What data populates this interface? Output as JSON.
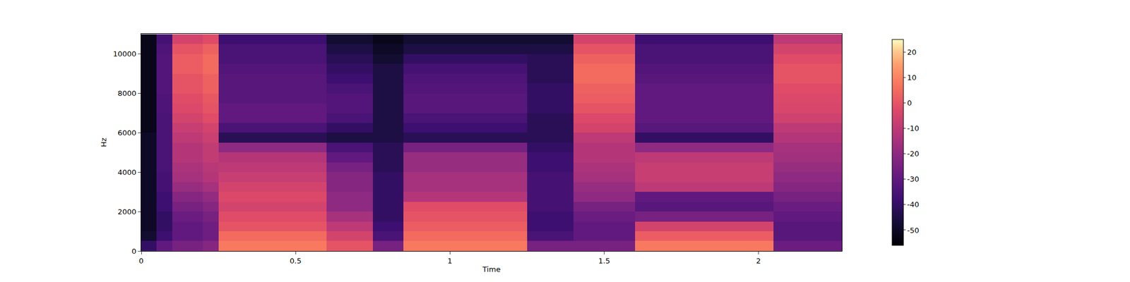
{
  "chart_data": {
    "type": "heatmap",
    "xlabel": "Time",
    "ylabel": "Hz",
    "color": "magma",
    "x": [
      0.025,
      0.075,
      0.125,
      0.175,
      0.225,
      0.275,
      0.325,
      0.375,
      0.425,
      0.475,
      0.525,
      0.575,
      0.625,
      0.675,
      0.725,
      0.775,
      0.825,
      0.875,
      0.925,
      0.975,
      1.025,
      1.075,
      1.125,
      1.175,
      1.225,
      1.275,
      1.325,
      1.375,
      1.425,
      1.475,
      1.525,
      1.575,
      1.625,
      1.675,
      1.725,
      1.775,
      1.825,
      1.875,
      1.925,
      1.975,
      2.025,
      2.075,
      2.125,
      2.175,
      2.225,
      2.275
    ],
    "y": [
      250,
      750,
      1250,
      1750,
      2250,
      2750,
      3250,
      3750,
      4250,
      4750,
      5250,
      5750,
      6250,
      6750,
      7250,
      7750,
      8250,
      8750,
      9250,
      9750,
      10250,
      10750
    ],
    "cells": [
      [
        -40,
        -30,
        -25,
        -25,
        -22,
        8,
        8,
        8,
        8,
        8,
        8,
        8,
        0,
        0,
        0,
        -25,
        -25,
        8,
        8,
        8,
        8,
        8,
        8,
        8,
        8,
        -25,
        -25,
        -25,
        -25,
        -25,
        -25,
        -25,
        8,
        8,
        8,
        8,
        8,
        8,
        8,
        8,
        8,
        -28,
        -28,
        -28,
        -28,
        -28
      ],
      [
        -48,
        -38,
        -30,
        -30,
        -27,
        5,
        5,
        5,
        5,
        5,
        5,
        5,
        -5,
        -5,
        -5,
        -35,
        -35,
        5,
        5,
        5,
        5,
        5,
        5,
        5,
        5,
        -35,
        -35,
        -35,
        -30,
        -30,
        -30,
        -30,
        2,
        2,
        2,
        2,
        2,
        2,
        2,
        2,
        2,
        -32,
        -32,
        -32,
        -32,
        -32
      ],
      [
        -50,
        -40,
        -30,
        -30,
        -27,
        0,
        0,
        0,
        0,
        0,
        0,
        0,
        -10,
        -10,
        -10,
        -38,
        -38,
        2,
        2,
        2,
        2,
        2,
        2,
        2,
        2,
        -38,
        -38,
        -38,
        -30,
        -30,
        -30,
        -30,
        -5,
        -5,
        -5,
        -5,
        -5,
        -5,
        -5,
        -5,
        -5,
        -32,
        -32,
        -32,
        -32,
        -32
      ],
      [
        -50,
        -40,
        -28,
        -28,
        -25,
        -2,
        -2,
        -2,
        -2,
        -2,
        -2,
        -2,
        -15,
        -15,
        -15,
        -40,
        -40,
        0,
        0,
        0,
        0,
        0,
        0,
        0,
        0,
        -38,
        -38,
        -38,
        -28,
        -28,
        -28,
        -28,
        -25,
        -25,
        -25,
        -25,
        -25,
        -25,
        -25,
        -25,
        -25,
        -30,
        -30,
        -30,
        -30,
        -30
      ],
      [
        -50,
        -38,
        -25,
        -25,
        -22,
        -5,
        -5,
        -5,
        -5,
        -5,
        -5,
        -5,
        -20,
        -20,
        -20,
        -40,
        -40,
        -2,
        -2,
        -2,
        -2,
        -2,
        -2,
        -2,
        -2,
        -36,
        -36,
        -36,
        -25,
        -25,
        -25,
        -25,
        -32,
        -32,
        -32,
        -32,
        -32,
        -32,
        -32,
        -32,
        -32,
        -28,
        -28,
        -28,
        -28,
        -28
      ],
      [
        -50,
        -38,
        -22,
        -22,
        -19,
        -3,
        -3,
        -3,
        -3,
        -3,
        -3,
        -3,
        -20,
        -20,
        -20,
        -40,
        -40,
        -12,
        -12,
        -12,
        -12,
        -12,
        -12,
        -12,
        -12,
        -36,
        -36,
        -36,
        -20,
        -20,
        -20,
        -20,
        -30,
        -30,
        -30,
        -30,
        -30,
        -30,
        -30,
        -30,
        -30,
        -25,
        -25,
        -25,
        -25,
        -25
      ],
      [
        -50,
        -36,
        -18,
        -18,
        -15,
        -5,
        -5,
        -5,
        -5,
        -5,
        -5,
        -5,
        -22,
        -22,
        -22,
        -40,
        -40,
        -15,
        -15,
        -15,
        -15,
        -15,
        -15,
        -15,
        -15,
        -36,
        -36,
        -36,
        -18,
        -18,
        -18,
        -18,
        -10,
        -10,
        -10,
        -10,
        -10,
        -10,
        -10,
        -10,
        -10,
        -22,
        -22,
        -22,
        -22,
        -22
      ],
      [
        -50,
        -36,
        -15,
        -15,
        -12,
        -8,
        -8,
        -8,
        -8,
        -8,
        -8,
        -8,
        -22,
        -22,
        -22,
        -40,
        -40,
        -15,
        -15,
        -15,
        -15,
        -15,
        -15,
        -15,
        -15,
        -36,
        -36,
        -36,
        -15,
        -15,
        -15,
        -15,
        -8,
        -8,
        -8,
        -8,
        -8,
        -8,
        -8,
        -8,
        -8,
        -20,
        -20,
        -20,
        -20,
        -20
      ],
      [
        -50,
        -35,
        -14,
        -14,
        -11,
        -10,
        -10,
        -10,
        -10,
        -10,
        -10,
        -10,
        -25,
        -25,
        -25,
        -42,
        -42,
        -18,
        -18,
        -18,
        -18,
        -18,
        -18,
        -18,
        -18,
        -38,
        -38,
        -38,
        -14,
        -14,
        -14,
        -14,
        -8,
        -8,
        -8,
        -8,
        -8,
        -8,
        -8,
        -8,
        -8,
        -18,
        -18,
        -18,
        -18,
        -18
      ],
      [
        -50,
        -35,
        -12,
        -12,
        -9,
        -12,
        -12,
        -12,
        -12,
        -12,
        -12,
        -12,
        -30,
        -30,
        -30,
        -42,
        -42,
        -18,
        -18,
        -18,
        -18,
        -18,
        -18,
        -18,
        -18,
        -38,
        -38,
        -38,
        -12,
        -12,
        -12,
        -12,
        -10,
        -10,
        -10,
        -10,
        -10,
        -10,
        -10,
        -10,
        -10,
        -16,
        -16,
        -16,
        -16,
        -16
      ],
      [
        -50,
        -35,
        -12,
        -12,
        -9,
        -20,
        -20,
        -20,
        -20,
        -20,
        -20,
        -20,
        -35,
        -35,
        -35,
        -42,
        -42,
        -25,
        -25,
        -25,
        -25,
        -25,
        -25,
        -25,
        -25,
        -40,
        -40,
        -40,
        -12,
        -12,
        -12,
        -12,
        -20,
        -20,
        -20,
        -20,
        -20,
        -20,
        -20,
        -20,
        -20,
        -15,
        -15,
        -15,
        -15,
        -15
      ],
      [
        -50,
        -35,
        -10,
        -10,
        -7,
        -42,
        -42,
        -42,
        -42,
        -42,
        -42,
        -42,
        -45,
        -45,
        -45,
        -45,
        -45,
        -42,
        -42,
        -42,
        -42,
        -42,
        -42,
        -42,
        -42,
        -42,
        -42,
        -42,
        -10,
        -10,
        -10,
        -10,
        -40,
        -40,
        -40,
        -40,
        -40,
        -40,
        -40,
        -40,
        -40,
        -12,
        -12,
        -12,
        -12,
        -12
      ],
      [
        -52,
        -35,
        -8,
        -8,
        -5,
        -35,
        -35,
        -35,
        -35,
        -35,
        -35,
        -35,
        -40,
        -40,
        -40,
        -45,
        -45,
        -38,
        -38,
        -38,
        -38,
        -38,
        -38,
        -38,
        -38,
        -42,
        -42,
        -42,
        -5,
        -5,
        -5,
        -5,
        -32,
        -32,
        -32,
        -32,
        -32,
        -32,
        -32,
        -32,
        -32,
        -10,
        -10,
        -10,
        -10,
        -10
      ],
      [
        -52,
        -35,
        -5,
        -5,
        -2,
        -30,
        -30,
        -30,
        -30,
        -30,
        -30,
        -30,
        -35,
        -35,
        -35,
        -45,
        -45,
        -35,
        -35,
        -35,
        -35,
        -35,
        -35,
        -35,
        -35,
        -42,
        -42,
        -42,
        -3,
        -3,
        -3,
        -3,
        -30,
        -30,
        -30,
        -30,
        -30,
        -30,
        -30,
        -30,
        -30,
        -6,
        -6,
        -6,
        -6,
        -6
      ],
      [
        -52,
        -34,
        -3,
        -3,
        0,
        -30,
        -30,
        -30,
        -30,
        -30,
        -30,
        -30,
        -33,
        -33,
        -33,
        -45,
        -45,
        -32,
        -32,
        -32,
        -32,
        -32,
        -32,
        -32,
        -32,
        -40,
        -40,
        -40,
        0,
        0,
        0,
        0,
        -30,
        -30,
        -30,
        -30,
        -30,
        -30,
        -30,
        -30,
        -30,
        -4,
        -4,
        -4,
        -4,
        -4
      ],
      [
        -52,
        -34,
        -2,
        -2,
        1,
        -32,
        -32,
        -32,
        -32,
        -32,
        -32,
        -32,
        -33,
        -33,
        -33,
        -45,
        -45,
        -32,
        -32,
        -32,
        -32,
        -32,
        -32,
        -32,
        -32,
        -40,
        -40,
        -40,
        2,
        2,
        2,
        2,
        -30,
        -30,
        -30,
        -30,
        -30,
        -30,
        -30,
        -30,
        -30,
        -3,
        -3,
        -3,
        -3,
        -3
      ],
      [
        -52,
        -33,
        0,
        0,
        3,
        -32,
        -32,
        -32,
        -32,
        -32,
        -32,
        -32,
        -35,
        -35,
        -35,
        -45,
        -45,
        -33,
        -33,
        -33,
        -33,
        -33,
        -33,
        -33,
        -33,
        -40,
        -40,
        -40,
        3,
        3,
        3,
        3,
        -30,
        -30,
        -30,
        -30,
        -30,
        -30,
        -30,
        -30,
        -30,
        -2,
        -2,
        -2,
        -2,
        -2
      ],
      [
        -52,
        -33,
        0,
        0,
        3,
        -32,
        -32,
        -32,
        -32,
        -32,
        -32,
        -32,
        -38,
        -38,
        -38,
        -45,
        -45,
        -34,
        -34,
        -34,
        -34,
        -34,
        -34,
        -34,
        -34,
        -42,
        -42,
        -42,
        5,
        5,
        5,
        5,
        -32,
        -32,
        -32,
        -32,
        -32,
        -32,
        -32,
        -32,
        -32,
        0,
        0,
        0,
        0,
        0
      ],
      [
        -52,
        -33,
        2,
        2,
        5,
        -33,
        -33,
        -33,
        -33,
        -33,
        -33,
        -33,
        -40,
        -40,
        -40,
        -45,
        -45,
        -36,
        -36,
        -36,
        -36,
        -36,
        -36,
        -36,
        -36,
        -42,
        -42,
        -42,
        5,
        5,
        5,
        5,
        -33,
        -33,
        -33,
        -33,
        -33,
        -33,
        -33,
        -33,
        -33,
        0,
        0,
        0,
        0,
        0
      ],
      [
        -52,
        -33,
        2,
        2,
        5,
        -35,
        -35,
        -35,
        -35,
        -35,
        -35,
        -35,
        -42,
        -42,
        -42,
        -48,
        -48,
        -40,
        -40,
        -40,
        -40,
        -40,
        -40,
        -40,
        -40,
        -42,
        -42,
        -42,
        3,
        3,
        3,
        3,
        -35,
        -35,
        -35,
        -35,
        -35,
        -35,
        -35,
        -35,
        -35,
        -2,
        -2,
        -2,
        -2,
        -2
      ],
      [
        -52,
        -34,
        0,
        0,
        3,
        -35,
        -35,
        -35,
        -35,
        -35,
        -35,
        -35,
        -45,
        -45,
        -45,
        -50,
        -50,
        -45,
        -45,
        -45,
        -45,
        -45,
        -45,
        -45,
        -45,
        -45,
        -45,
        -45,
        0,
        0,
        0,
        0,
        -35,
        -35,
        -35,
        -35,
        -35,
        -35,
        -35,
        -35,
        -35,
        -5,
        -5,
        -5,
        -5,
        -5
      ],
      [
        -52,
        -36,
        -5,
        -5,
        -2,
        -38,
        -38,
        -38,
        -38,
        -38,
        -38,
        -38,
        -48,
        -48,
        -48,
        -52,
        -52,
        -48,
        -48,
        -48,
        -48,
        -48,
        -48,
        -48,
        -48,
        -48,
        -48,
        -48,
        -5,
        -5,
        -5,
        -5,
        -38,
        -38,
        -38,
        -38,
        -38,
        -38,
        -38,
        -38,
        -38,
        -10,
        -10,
        -10,
        -10,
        -10
      ]
    ],
    "xlim": [
      0,
      2.27
    ],
    "xticks": [
      0,
      0.5,
      1,
      1.5,
      2
    ],
    "ylim": [
      0,
      11025
    ],
    "yticks": [
      0,
      2000,
      4000,
      6000,
      8000,
      10000
    ],
    "zlim": [
      -56,
      25
    ],
    "zticks": [
      -50,
      -40,
      -30,
      -20,
      -10,
      0,
      10,
      20
    ]
  }
}
